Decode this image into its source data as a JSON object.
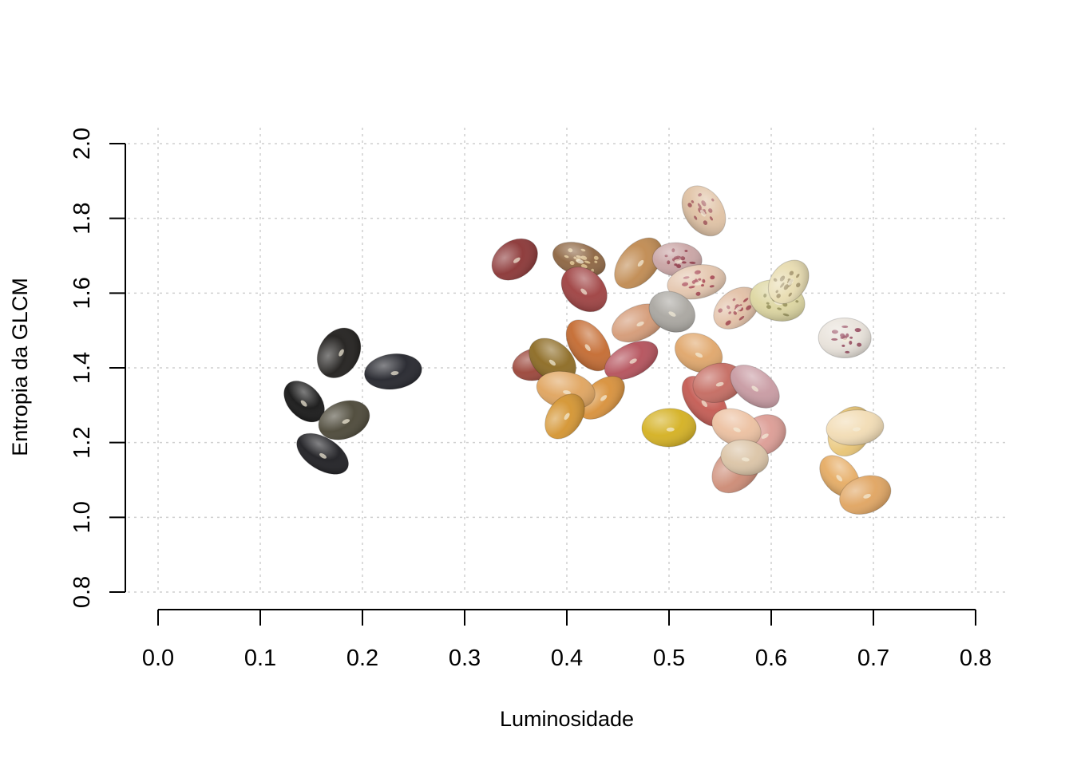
{
  "chart_data": {
    "type": "scatter",
    "title": "",
    "xlabel": "Luminosidade",
    "ylabel": "Entropia da GLCM",
    "xlim": [
      0.0,
      0.8
    ],
    "ylim": [
      0.8,
      2.0
    ],
    "xticks": [
      "0.0",
      "0.1",
      "0.2",
      "0.3",
      "0.4",
      "0.5",
      "0.6",
      "0.7",
      "0.8"
    ],
    "yticks": [
      "0.8",
      "1.0",
      "1.2",
      "1.4",
      "1.6",
      "1.8",
      "2.0"
    ],
    "grid": true,
    "legend": "none",
    "marker_style": "bean images (seed photographs used as point markers)",
    "points": [
      {
        "x": 0.177,
        "y": 1.44,
        "color": "#1e1c1a",
        "speckle": ""
      },
      {
        "x": 0.23,
        "y": 1.39,
        "color": "#22232a",
        "speckle": ""
      },
      {
        "x": 0.143,
        "y": 1.31,
        "color": "#141414",
        "speckle": ""
      },
      {
        "x": 0.182,
        "y": 1.26,
        "color": "#4a4636",
        "speckle": ""
      },
      {
        "x": 0.161,
        "y": 1.17,
        "color": "#1c1c20",
        "speckle": ""
      },
      {
        "x": 0.349,
        "y": 1.69,
        "color": "#8a3434",
        "speckle": ""
      },
      {
        "x": 0.412,
        "y": 1.69,
        "color": "#8c6440",
        "speckle": "#e0c490"
      },
      {
        "x": 0.47,
        "y": 1.68,
        "color": "#c08a50",
        "speckle": ""
      },
      {
        "x": 0.508,
        "y": 1.69,
        "color": "#c9a4a4",
        "speckle": "#8a3040"
      },
      {
        "x": 0.534,
        "y": 1.82,
        "color": "#e0c2a4",
        "speckle": "#9a4a50"
      },
      {
        "x": 0.527,
        "y": 1.63,
        "color": "#e4c6ae",
        "speckle": "#a03848"
      },
      {
        "x": 0.417,
        "y": 1.61,
        "color": "#9e4040",
        "speckle": ""
      },
      {
        "x": 0.47,
        "y": 1.52,
        "color": "#d49a76",
        "speckle": ""
      },
      {
        "x": 0.503,
        "y": 1.55,
        "color": "#a9a6a0",
        "speckle": ""
      },
      {
        "x": 0.566,
        "y": 1.56,
        "color": "#e2c0a6",
        "speckle": "#9a3a44"
      },
      {
        "x": 0.606,
        "y": 1.58,
        "color": "#ddd6a0",
        "speckle": "#8e8850"
      },
      {
        "x": 0.617,
        "y": 1.63,
        "color": "#e8dcb0",
        "speckle": "#9a8a60"
      },
      {
        "x": 0.672,
        "y": 1.48,
        "color": "#e8e2da",
        "speckle": "#8c3a50"
      },
      {
        "x": 0.421,
        "y": 1.46,
        "color": "#c46a30",
        "speckle": ""
      },
      {
        "x": 0.37,
        "y": 1.41,
        "color": "#9a4438",
        "speckle": ""
      },
      {
        "x": 0.386,
        "y": 1.42,
        "color": "#8c6a22",
        "speckle": ""
      },
      {
        "x": 0.463,
        "y": 1.42,
        "color": "#b4505a",
        "speckle": ""
      },
      {
        "x": 0.529,
        "y": 1.44,
        "color": "#e0a66a",
        "speckle": ""
      },
      {
        "x": 0.434,
        "y": 1.32,
        "color": "#d8903a",
        "speckle": ""
      },
      {
        "x": 0.399,
        "y": 1.34,
        "color": "#e0a45e",
        "speckle": ""
      },
      {
        "x": 0.398,
        "y": 1.27,
        "color": "#d49430",
        "speckle": ""
      },
      {
        "x": 0.5,
        "y": 1.24,
        "color": "#d4b020",
        "speckle": ""
      },
      {
        "x": 0.535,
        "y": 1.31,
        "color": "#c45a52",
        "speckle": ""
      },
      {
        "x": 0.548,
        "y": 1.36,
        "color": "#c46a60",
        "speckle": ""
      },
      {
        "x": 0.584,
        "y": 1.35,
        "color": "#c89aa2",
        "speckle": ""
      },
      {
        "x": 0.592,
        "y": 1.22,
        "color": "#dc9c94",
        "speckle": ""
      },
      {
        "x": 0.566,
        "y": 1.24,
        "color": "#ecc0a0",
        "speckle": ""
      },
      {
        "x": 0.566,
        "y": 1.13,
        "color": "#cc8a74",
        "speckle": ""
      },
      {
        "x": 0.574,
        "y": 1.16,
        "color": "#dbc4a6",
        "speckle": ""
      },
      {
        "x": 0.677,
        "y": 1.23,
        "color": "#e8c474",
        "speckle": ""
      },
      {
        "x": 0.682,
        "y": 1.24,
        "color": "#f2dcb4",
        "speckle": ""
      },
      {
        "x": 0.667,
        "y": 1.11,
        "color": "#e6ac64",
        "speckle": ""
      },
      {
        "x": 0.692,
        "y": 1.06,
        "color": "#e0a460",
        "speckle": ""
      }
    ]
  }
}
